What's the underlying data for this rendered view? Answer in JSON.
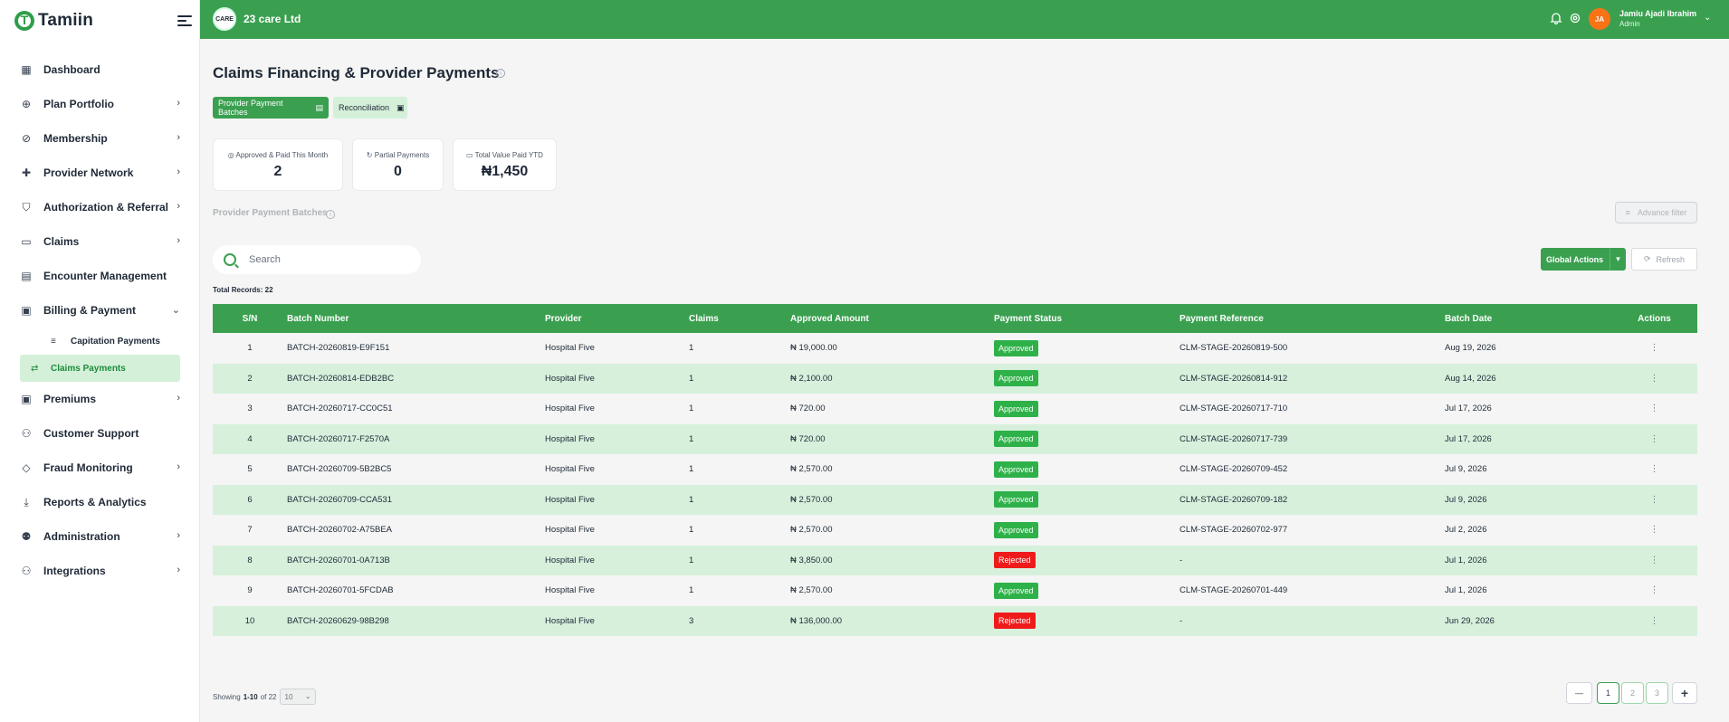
{
  "brand": {
    "name": "Tamiin"
  },
  "sidebar": {
    "items": [
      {
        "label": "Dashboard",
        "icon": "grid-icon",
        "chevron": false
      },
      {
        "label": "Plan Portfolio",
        "icon": "plus-circle-icon",
        "chevron": true
      },
      {
        "label": "Membership",
        "icon": "check-circle-icon",
        "chevron": true
      },
      {
        "label": "Provider Network",
        "icon": "plus-icon",
        "chevron": true
      },
      {
        "label": "Authorization & Referral",
        "icon": "shield-icon",
        "chevron": true
      },
      {
        "label": "Claims",
        "icon": "folder-icon",
        "chevron": true
      },
      {
        "label": "Encounter Management",
        "icon": "clipboard-icon",
        "chevron": false
      },
      {
        "label": "Billing & Payment",
        "icon": "bill-icon",
        "chevron": true,
        "expanded": true
      },
      {
        "label": "Premiums",
        "icon": "money-icon",
        "chevron": true
      },
      {
        "label": "Customer Support",
        "icon": "users-icon",
        "chevron": false
      },
      {
        "label": "Fraud Monitoring",
        "icon": "shield-outline-icon",
        "chevron": true
      },
      {
        "label": "Reports & Analytics",
        "icon": "download-icon",
        "chevron": false
      },
      {
        "label": "Administration",
        "icon": "user-cog-icon",
        "chevron": true
      },
      {
        "label": "Integrations",
        "icon": "network-icon",
        "chevron": true
      }
    ],
    "subitems": [
      {
        "label": "Capitation Payments",
        "active": false
      },
      {
        "label": "Claims Payments",
        "active": true
      }
    ]
  },
  "header": {
    "company": "23 care Ltd",
    "company_logo_text": "CARE",
    "user_initials": "JA",
    "user_name": "Jamiu Ajadi Ibrahim",
    "user_role": "Admin"
  },
  "page": {
    "title": "Claims Financing & Provider Payments",
    "tabs": [
      "Provider Payment Batches",
      "Reconciliation"
    ],
    "stats": [
      {
        "label": "Approved & Paid This Month",
        "value": "2"
      },
      {
        "label": "Partial Payments",
        "value": "0"
      },
      {
        "label": "Total Value Paid YTD",
        "value": "₦1,450"
      }
    ],
    "section_title": "Provider Payment Batches",
    "advance_filter": "Advance filter",
    "search_placeholder": "Search",
    "global_actions": "Global Actions",
    "refresh": "Refresh",
    "total_records": "Total Records: 22"
  },
  "table": {
    "headers": [
      "S/N",
      "Batch Number",
      "Provider",
      "Claims",
      "Approved Amount",
      "Payment Status",
      "Payment Reference",
      "Batch Date",
      "Actions"
    ],
    "rows": [
      [
        "1",
        "BATCH-20260819-E9F151",
        "Hospital Five",
        "1",
        "₦ 19,000.00",
        "Approved",
        "CLM-STAGE-20260819-500",
        "Aug 19, 2026"
      ],
      [
        "2",
        "BATCH-20260814-EDB2BC",
        "Hospital Five",
        "1",
        "₦ 2,100.00",
        "Approved",
        "CLM-STAGE-20260814-912",
        "Aug 14, 2026"
      ],
      [
        "3",
        "BATCH-20260717-CC0C51",
        "Hospital Five",
        "1",
        "₦ 720.00",
        "Approved",
        "CLM-STAGE-20260717-710",
        "Jul 17, 2026"
      ],
      [
        "4",
        "BATCH-20260717-F2570A",
        "Hospital Five",
        "1",
        "₦ 720.00",
        "Approved",
        "CLM-STAGE-20260717-739",
        "Jul 17, 2026"
      ],
      [
        "5",
        "BATCH-20260709-5B2BC5",
        "Hospital Five",
        "1",
        "₦ 2,570.00",
        "Approved",
        "CLM-STAGE-20260709-452",
        "Jul 9, 2026"
      ],
      [
        "6",
        "BATCH-20260709-CCA531",
        "Hospital Five",
        "1",
        "₦ 2,570.00",
        "Approved",
        "CLM-STAGE-20260709-182",
        "Jul 9, 2026"
      ],
      [
        "7",
        "BATCH-20260702-A75BEA",
        "Hospital Five",
        "1",
        "₦ 2,570.00",
        "Approved",
        "CLM-STAGE-20260702-977",
        "Jul 2, 2026"
      ],
      [
        "8",
        "BATCH-20260701-0A713B",
        "Hospital Five",
        "1",
        "₦ 3,850.00",
        "Rejected",
        "-",
        "Jul 1, 2026"
      ],
      [
        "9",
        "BATCH-20260701-5FCDAB",
        "Hospital Five",
        "1",
        "₦ 2,570.00",
        "Approved",
        "CLM-STAGE-20260701-449",
        "Jul 1, 2026"
      ],
      [
        "10",
        "BATCH-20260629-98B298",
        "Hospital Five",
        "3",
        "₦ 136,000.00",
        "Rejected",
        "-",
        "Jun 29, 2026"
      ]
    ],
    "action_glyph": "⋮"
  },
  "pagination": {
    "showing_prefix": "Showing",
    "range": "1-10",
    "of_text": "of 22",
    "page_size": "10",
    "pages": [
      "1",
      "2",
      "3"
    ],
    "prev": "—",
    "next": "+"
  },
  "colors": {
    "primary": "#3aa050",
    "approved": "#2fb14a",
    "rejected": "#ef1b1b",
    "row_alt": "#d6f0dc"
  }
}
